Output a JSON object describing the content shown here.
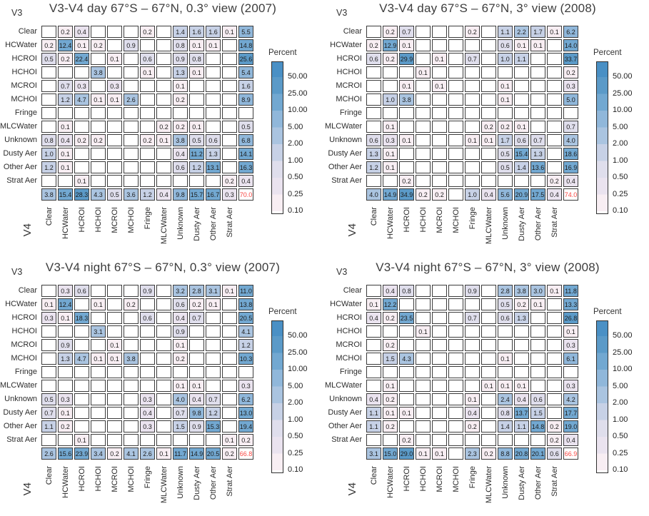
{
  "axes": {
    "row_axis": "V3",
    "col_axis": "V4",
    "categories": [
      "Clear",
      "HCWater",
      "HCROI",
      "HCHOI",
      "MCROI",
      "MCHOI",
      "Fringe",
      "MLCWater",
      "Unknown",
      "Dusty Aer",
      "Other Aer",
      "Strat Aer"
    ]
  },
  "legend": {
    "title": "Percent",
    "ticks": [
      "50.00",
      "25.00",
      "10.00",
      "5.00",
      "2.00",
      "1.00",
      "0.50",
      "0.25",
      "0.10"
    ]
  },
  "colors": {
    "scale_top": "#4a90c5",
    "bins": [
      {
        "min": 25,
        "hex": "#5b9ac8"
      },
      {
        "min": 10,
        "hex": "#72a8d1"
      },
      {
        "min": 5,
        "hex": "#90b7da"
      },
      {
        "min": 2,
        "hex": "#aac4e0"
      },
      {
        "min": 1,
        "hex": "#c7d1e6"
      },
      {
        "min": 0.5,
        "hex": "#dfdeec"
      },
      {
        "min": 0.25,
        "hex": "#eae3ef"
      },
      {
        "min": 0,
        "hex": "#f8eef3"
      }
    ],
    "empty_cell": "#ffffff",
    "grand_total_text": "#f94540",
    "cell_border": "#3b3b3b"
  },
  "chart_data": [
    {
      "type": "heatmap",
      "title": "V3-V4 day 67°S – 67°N, 0.3° view (2007)",
      "rows": [
        {
          "label": "Clear",
          "cells": [
            "",
            "0.2",
            "0.4",
            "",
            "",
            "",
            "0.2",
            "",
            "1.4",
            "1.6",
            "1.6",
            "0.1"
          ],
          "total": "5.5"
        },
        {
          "label": "HCWater",
          "cells": [
            "0.2",
            "12.4",
            "0.1",
            "0.2",
            "",
            "0.9",
            "",
            "",
            "0.8",
            "0.1",
            "0.1",
            ""
          ],
          "total": "14.8"
        },
        {
          "label": "HCROI",
          "cells": [
            "0.5",
            "0.2",
            "22.4",
            "",
            "0.1",
            "",
            "0.6",
            "",
            "0.9",
            "0.8",
            "",
            ""
          ],
          "total": "25.6"
        },
        {
          "label": "HCHOI",
          "cells": [
            "",
            "",
            "",
            "3.8",
            "",
            "",
            "0.1",
            "",
            "1.3",
            "0.1",
            "",
            ""
          ],
          "total": "5.4"
        },
        {
          "label": "MCROI",
          "cells": [
            "",
            "0.7",
            "0.3",
            "",
            "0.3",
            "",
            "",
            "",
            "0.1",
            "",
            "",
            ""
          ],
          "total": "1.6"
        },
        {
          "label": "MCHOI",
          "cells": [
            "",
            "1.2",
            "4.7",
            "0.1",
            "0.1",
            "2.6",
            "",
            "",
            "0.2",
            "",
            "",
            ""
          ],
          "total": "8.9"
        },
        {
          "label": "Fringe",
          "cells": [
            "",
            "",
            "",
            "",
            "",
            "",
            "",
            "",
            "",
            "",
            "",
            ""
          ],
          "total": ""
        },
        {
          "label": "MLCWater",
          "cells": [
            "",
            "0.1",
            "",
            "",
            "",
            "",
            "",
            "0.2",
            "0.2",
            "0.1",
            "",
            ""
          ],
          "total": "0.5"
        },
        {
          "label": "Unknown",
          "cells": [
            "0.8",
            "0.4",
            "0.2",
            "0.2",
            "",
            "",
            "0.2",
            "0.1",
            "3.8",
            "0.5",
            "0.6",
            ""
          ],
          "total": "6.8"
        },
        {
          "label": "Dusty Aer",
          "cells": [
            "1.0",
            "0.1",
            "",
            "",
            "",
            "",
            "",
            "",
            "0.4",
            "11.2",
            "1.3",
            ""
          ],
          "total": "14.1"
        },
        {
          "label": "Other Aer",
          "cells": [
            "1.2",
            "0.1",
            "",
            "",
            "",
            "",
            "",
            "",
            "0.6",
            "1.2",
            "13.1",
            ""
          ],
          "total": "16.3"
        },
        {
          "label": "Strat Aer",
          "cells": [
            "",
            "",
            "0.1",
            "",
            "",
            "",
            "",
            "",
            "",
            "",
            "",
            "0.2"
          ],
          "total": "0.4"
        }
      ],
      "col_totals": [
        "3.8",
        "15.4",
        "28.3",
        "4.3",
        "0.5",
        "3.6",
        "1.2",
        "0.4",
        "9.8",
        "15.7",
        "16.7",
        "0.3"
      ],
      "grand_total": "70.0"
    },
    {
      "type": "heatmap",
      "title": "V3-V4 day 67°S – 67°N, 3° view (2008)",
      "rows": [
        {
          "label": "Clear",
          "cells": [
            "",
            "0.2",
            "0.7",
            "",
            "",
            "",
            "0.2",
            "",
            "1.1",
            "2.2",
            "1.7",
            "0.1"
          ],
          "total": "6.2"
        },
        {
          "label": "HCWater",
          "cells": [
            "0.2",
            "12.9",
            "0.1",
            "",
            "",
            "",
            "",
            "",
            "0.6",
            "0.1",
            "0.1",
            ""
          ],
          "total": "14.0"
        },
        {
          "label": "HCROI",
          "cells": [
            "0.6",
            "0.2",
            "29.9",
            "",
            "0.1",
            "",
            "0.7",
            "",
            "1.0",
            "1.1",
            "",
            ""
          ],
          "total": "33.7"
        },
        {
          "label": "HCHOI",
          "cells": [
            "",
            "",
            "",
            "0.1",
            "",
            "",
            "",
            "",
            "",
            "",
            "",
            ""
          ],
          "total": "0.2"
        },
        {
          "label": "MCROI",
          "cells": [
            "",
            "",
            "0.1",
            "",
            "0.1",
            "",
            "",
            "",
            "0.1",
            "",
            "",
            ""
          ],
          "total": "0.3"
        },
        {
          "label": "MCHOI",
          "cells": [
            "",
            "1.0",
            "3.8",
            "",
            "",
            "",
            "",
            "",
            "0.1",
            "",
            "",
            ""
          ],
          "total": "5.0"
        },
        {
          "label": "Fringe",
          "cells": [
            "",
            "",
            "",
            "",
            "",
            "",
            "",
            "",
            "",
            "",
            "",
            ""
          ],
          "total": ""
        },
        {
          "label": "MLCWater",
          "cells": [
            "",
            "0.1",
            "",
            "",
            "",
            "",
            "",
            "0.2",
            "0.2",
            "0.1",
            "",
            ""
          ],
          "total": "0.7"
        },
        {
          "label": "Unknown",
          "cells": [
            "0.6",
            "0.3",
            "0.1",
            "",
            "",
            "",
            "0.1",
            "0.1",
            "1.7",
            "0.6",
            "0.7",
            ""
          ],
          "total": "4.0"
        },
        {
          "label": "Dusty Aer",
          "cells": [
            "1.3",
            "0.1",
            "",
            "",
            "",
            "",
            "",
            "",
            "0.5",
            "15.4",
            "1.3",
            ""
          ],
          "total": "18.6"
        },
        {
          "label": "Other Aer",
          "cells": [
            "1.2",
            "0.1",
            "",
            "",
            "",
            "",
            "",
            "",
            "0.5",
            "1.4",
            "13.6",
            ""
          ],
          "total": "16.9"
        },
        {
          "label": "Strat Aer",
          "cells": [
            "",
            "",
            "0.2",
            "",
            "",
            "",
            "",
            "",
            "",
            "",
            "",
            "0.2"
          ],
          "total": "0.4"
        }
      ],
      "col_totals": [
        "4.0",
        "14.9",
        "34.9",
        "0.2",
        "0.2",
        "",
        "1.0",
        "0.4",
        "5.6",
        "20.9",
        "17.5",
        "0.4"
      ],
      "grand_total": "74.0"
    },
    {
      "type": "heatmap",
      "title": "V3-V4 night 67°S – 67°N, 0.3° view (2007)",
      "rows": [
        {
          "label": "Clear",
          "cells": [
            "",
            "0.3",
            "0.6",
            "",
            "",
            "",
            "0.9",
            "",
            "3.2",
            "2.8",
            "3.1",
            "0.1"
          ],
          "total": "11.0"
        },
        {
          "label": "HCWater",
          "cells": [
            "0.1",
            "12.4",
            "",
            "0.1",
            "",
            "0.2",
            "",
            "",
            "0.6",
            "0.2",
            "0.1",
            ""
          ],
          "total": "13.8"
        },
        {
          "label": "HCROI",
          "cells": [
            "0.3",
            "0.1",
            "18.3",
            "",
            "",
            "",
            "0.6",
            "",
            "0.4",
            "0.7",
            "",
            ""
          ],
          "total": "20.5"
        },
        {
          "label": "HCHOI",
          "cells": [
            "",
            "",
            "",
            "3.1",
            "",
            "",
            "",
            "",
            "0.9",
            "",
            "",
            ""
          ],
          "total": "4.1"
        },
        {
          "label": "MCROI",
          "cells": [
            "",
            "0.9",
            "",
            "",
            "0.1",
            "",
            "",
            "",
            "0.1",
            "",
            "",
            ""
          ],
          "total": "1.2"
        },
        {
          "label": "MCHOI",
          "cells": [
            "",
            "1.3",
            "4.7",
            "0.1",
            "0.1",
            "3.8",
            "",
            "",
            "0.2",
            "",
            "",
            ""
          ],
          "total": "10.3"
        },
        {
          "label": "Fringe",
          "cells": [
            "",
            "",
            "",
            "",
            "",
            "",
            "",
            "",
            "",
            "",
            "",
            ""
          ],
          "total": ""
        },
        {
          "label": "MLCWater",
          "cells": [
            "",
            "",
            "",
            "",
            "",
            "",
            "",
            "",
            "0.1",
            "0.1",
            "",
            ""
          ],
          "total": "0.3"
        },
        {
          "label": "Unknown",
          "cells": [
            "0.5",
            "0.3",
            "",
            "",
            "",
            "",
            "0.3",
            "",
            "4.0",
            "0.4",
            "0.7",
            ""
          ],
          "total": "6.2"
        },
        {
          "label": "Dusty Aer",
          "cells": [
            "0.7",
            "0.1",
            "",
            "",
            "",
            "",
            "0.4",
            "",
            "0.7",
            "9.8",
            "1.2",
            ""
          ],
          "total": "13.0"
        },
        {
          "label": "Other Aer",
          "cells": [
            "1.1",
            "0.2",
            "",
            "",
            "",
            "",
            "0.3",
            "",
            "1.5",
            "0.9",
            "15.3",
            ""
          ],
          "total": "19.4"
        },
        {
          "label": "Strat Aer",
          "cells": [
            "",
            "",
            "0.1",
            "",
            "",
            "",
            "",
            "",
            "",
            "",
            "",
            "0.1"
          ],
          "total": "0.2"
        }
      ],
      "col_totals": [
        "2.6",
        "15.6",
        "23.9",
        "3.4",
        "0.2",
        "4.1",
        "2.6",
        "0.1",
        "11.7",
        "14.9",
        "20.5",
        "0.2"
      ],
      "grand_total": "66.8"
    },
    {
      "type": "heatmap",
      "title": "V3-V4 night 67°S – 67°N, 3° view (2008)",
      "rows": [
        {
          "label": "Clear",
          "cells": [
            "",
            "0.4",
            "0.8",
            "",
            "",
            "",
            "0.9",
            "",
            "2.8",
            "3.8",
            "3.0",
            "0.1"
          ],
          "total": "11.8"
        },
        {
          "label": "HCWater",
          "cells": [
            "0.1",
            "12.2",
            "",
            "",
            "",
            "",
            "",
            "",
            "0.5",
            "0.2",
            "0.1",
            ""
          ],
          "total": "13.3"
        },
        {
          "label": "HCROI",
          "cells": [
            "0.4",
            "0.2",
            "23.5",
            "",
            "",
            "",
            "0.7",
            "",
            "0.6",
            "1.3",
            "",
            ""
          ],
          "total": "26.8"
        },
        {
          "label": "HCHOI",
          "cells": [
            "",
            "",
            "",
            "0.1",
            "",
            "",
            "",
            "",
            "",
            "",
            "",
            ""
          ],
          "total": "0.1"
        },
        {
          "label": "MCROI",
          "cells": [
            "",
            "0.2",
            "",
            "",
            "",
            "",
            "",
            "",
            "",
            "",
            "",
            ""
          ],
          "total": "0.3"
        },
        {
          "label": "MCHOI",
          "cells": [
            "",
            "1.5",
            "4.3",
            "",
            "",
            "",
            "",
            "",
            "0.1",
            "",
            "",
            ""
          ],
          "total": "6.1"
        },
        {
          "label": "Fringe",
          "cells": [
            "",
            "",
            "",
            "",
            "",
            "",
            "",
            "",
            "",
            "",
            "",
            ""
          ],
          "total": ""
        },
        {
          "label": "MLCWater",
          "cells": [
            "",
            "0.1",
            "",
            "",
            "",
            "",
            "",
            "0.1",
            "0.1",
            "0.1",
            "",
            ""
          ],
          "total": "0.3"
        },
        {
          "label": "Unknown",
          "cells": [
            "0.4",
            "0.2",
            "",
            "",
            "",
            "",
            "0.1",
            "",
            "2.4",
            "0.4",
            "0.6",
            ""
          ],
          "total": "4.2"
        },
        {
          "label": "Dusty Aer",
          "cells": [
            "1.1",
            "0.1",
            "0.1",
            "",
            "",
            "",
            "0.4",
            "",
            "0.8",
            "13.7",
            "1.5",
            ""
          ],
          "total": "17.7"
        },
        {
          "label": "Other Aer",
          "cells": [
            "1.1",
            "0.2",
            "",
            "",
            "",
            "",
            "0.2",
            "",
            "1.4",
            "1.1",
            "14.8",
            "0.2"
          ],
          "total": "19.0"
        },
        {
          "label": "Strat Aer",
          "cells": [
            "",
            "",
            "0.2",
            "",
            "",
            "",
            "",
            "",
            "",
            "",
            "",
            "0.2"
          ],
          "total": "0.4"
        }
      ],
      "col_totals": [
        "3.1",
        "15.0",
        "29.0",
        "0.1",
        "0.1",
        "",
        "2.3",
        "0.2",
        "8.8",
        "20.8",
        "20.1",
        "0.6"
      ],
      "grand_total": "66.9"
    }
  ]
}
